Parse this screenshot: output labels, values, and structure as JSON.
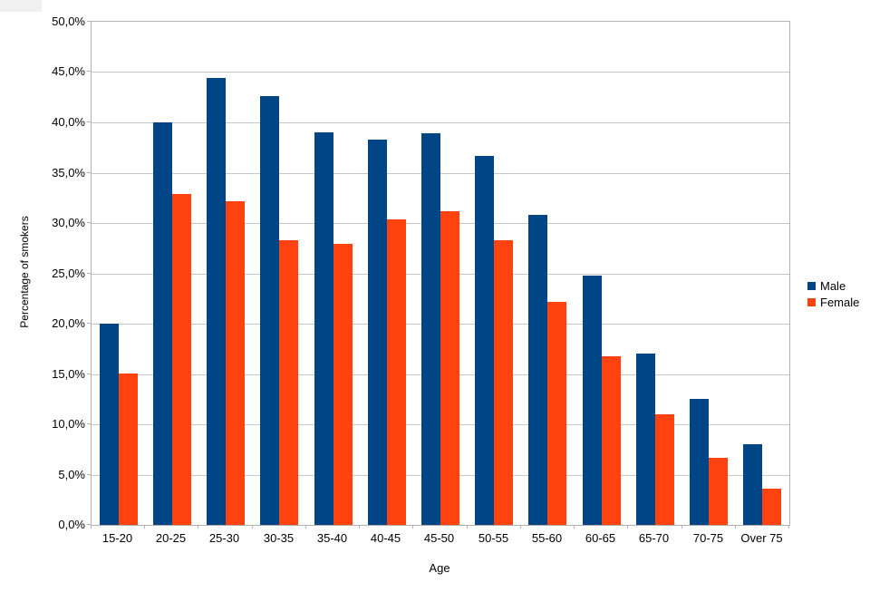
{
  "chart_data": {
    "type": "bar",
    "title": "",
    "xlabel": "Age",
    "ylabel": "Percentage of smokers",
    "ylim": [
      0,
      50
    ],
    "ytick_step": 5,
    "ytick_labels": [
      "0,0%",
      "5,0%",
      "10,0%",
      "15,0%",
      "20,0%",
      "25,0%",
      "30,0%",
      "35,0%",
      "40,0%",
      "45,0%",
      "50,0%"
    ],
    "grid": true,
    "legend_position": "right",
    "categories": [
      "15-20",
      "20-25",
      "25-30",
      "30-35",
      "35-40",
      "40-45",
      "45-50",
      "50-55",
      "55-60",
      "60-65",
      "65-70",
      "70-75",
      "Over 75"
    ],
    "series": [
      {
        "name": "Male",
        "color": "#004586",
        "values": [
          20.0,
          40.0,
          44.4,
          42.6,
          39.0,
          38.3,
          38.9,
          36.7,
          30.8,
          24.8,
          17.0,
          12.5,
          8.0
        ]
      },
      {
        "name": "Female",
        "color": "#FF420E",
        "values": [
          15.0,
          32.9,
          32.2,
          28.3,
          27.9,
          30.4,
          31.2,
          28.3,
          22.2,
          16.8,
          11.0,
          6.7,
          3.6
        ]
      }
    ],
    "colors": {
      "gridline": "#c6c6c6",
      "axis": "#b3b3b3",
      "text": "#000000",
      "background": "#ffffff"
    }
  }
}
